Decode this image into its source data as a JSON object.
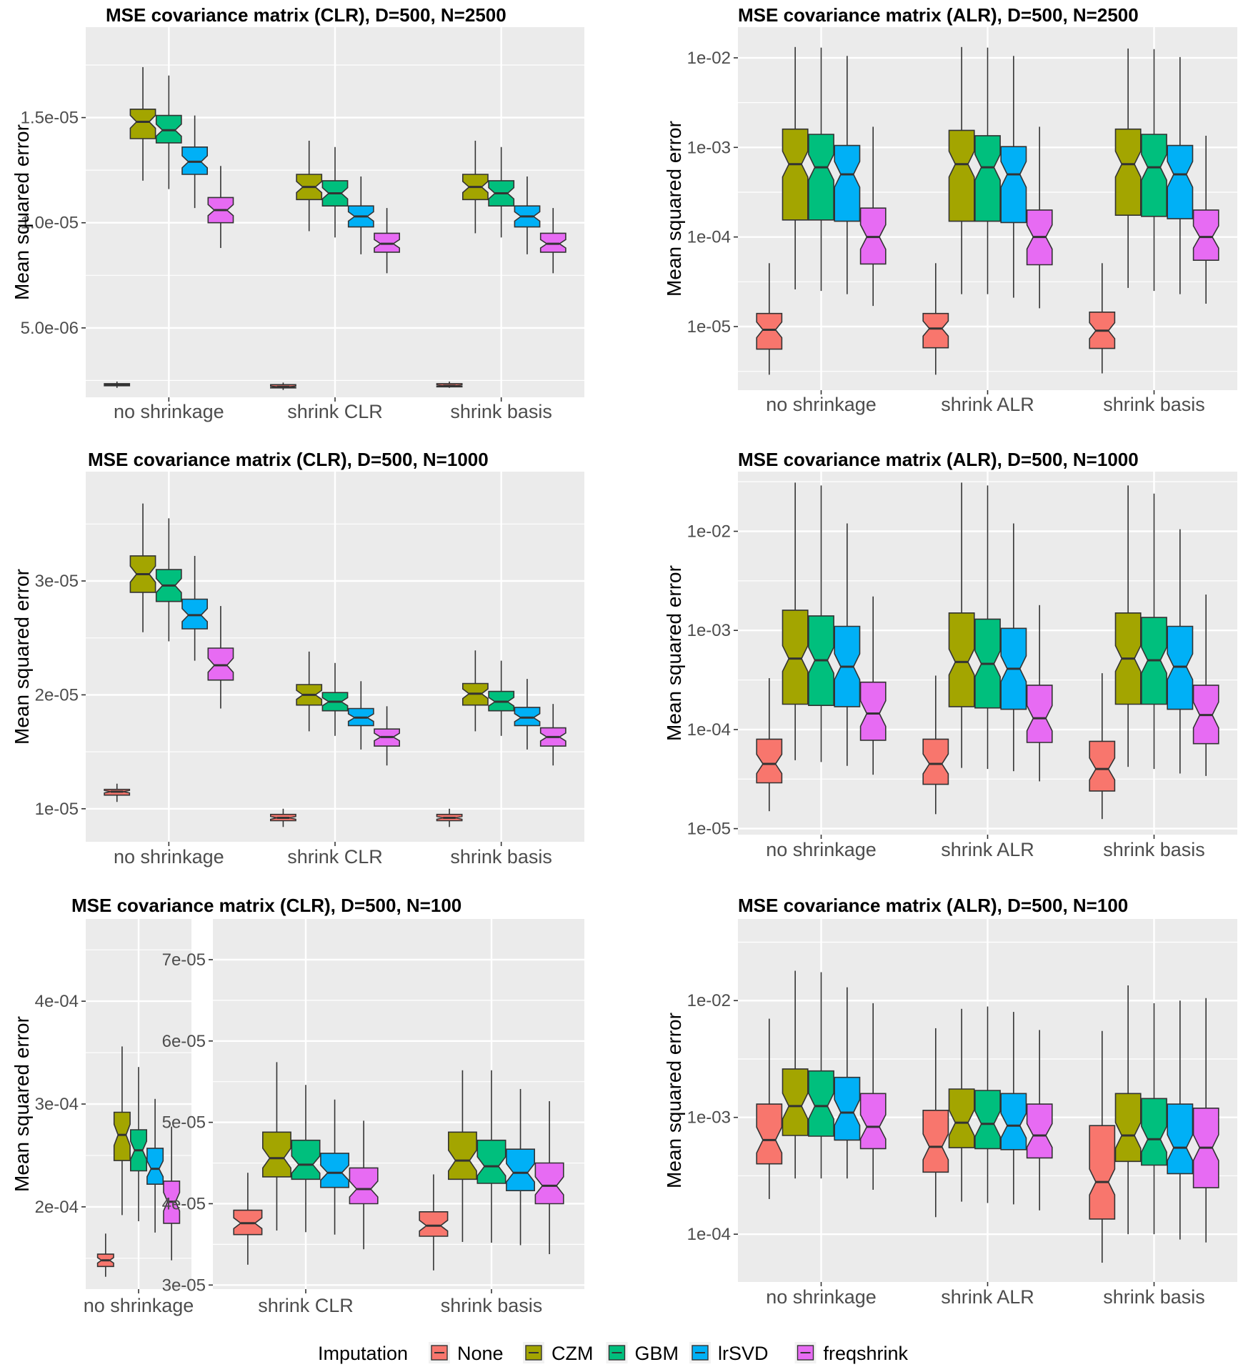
{
  "legend": {
    "title": "Imputation",
    "items": [
      {
        "name": "None",
        "color": "#F8766D"
      },
      {
        "name": "CZM",
        "color": "#A3A500"
      },
      {
        "name": "GBM",
        "color": "#00BF7D"
      },
      {
        "name": "lrSVD",
        "color": "#00B0F6"
      },
      {
        "name": "freqshrink",
        "color": "#E76BF3"
      }
    ]
  },
  "chart_data": [
    {
      "id": "clr2500",
      "type": "boxplot",
      "title": "MSE covariance matrix (CLR), D=500, N=2500",
      "ylabel": "Mean squared error",
      "scale": "linear",
      "ylim": [
        1.7e-06,
        1.93e-05
      ],
      "ticks": [
        {
          "v": 5e-06,
          "label": "5.0e-06"
        },
        {
          "v": 1e-05,
          "label": "1.0e-05"
        },
        {
          "v": 1.5e-05,
          "label": "1.5e-05"
        }
      ],
      "categories": [
        "no shrinkage",
        "shrink CLR",
        "shrink basis"
      ],
      "series_order": [
        "None",
        "CZM",
        "GBM",
        "lrSVD",
        "freqshrink"
      ],
      "boxes": [
        [
          [
            2.15e-06,
            2.25e-06,
            2.3e-06,
            2.35e-06,
            2.45e-06
          ],
          [
            1.2e-05,
            1.4e-05,
            1.48e-05,
            1.54e-05,
            1.74e-05
          ],
          [
            1.16e-05,
            1.38e-05,
            1.44e-05,
            1.51e-05,
            1.7e-05
          ],
          [
            1.07e-05,
            1.23e-05,
            1.29e-05,
            1.36e-05,
            1.51e-05
          ],
          [
            8.8e-06,
            1e-05,
            1.06e-05,
            1.12e-05,
            1.27e-05
          ]
        ],
        [
          [
            2.05e-06,
            2.15e-06,
            2.2e-06,
            2.3e-06,
            2.4e-06
          ],
          [
            9.6e-06,
            1.11e-05,
            1.17e-05,
            1.23e-05,
            1.39e-05
          ],
          [
            9.3e-06,
            1.08e-05,
            1.14e-05,
            1.2e-05,
            1.36e-05
          ],
          [
            8.5e-06,
            9.8e-06,
            1.03e-05,
            1.08e-05,
            1.22e-05
          ],
          [
            7.6e-06,
            8.6e-06,
            9e-06,
            9.5e-06,
            1.07e-05
          ]
        ],
        [
          [
            2.15e-06,
            2.2e-06,
            2.25e-06,
            2.35e-06,
            2.45e-06
          ],
          [
            9.5e-06,
            1.11e-05,
            1.17e-05,
            1.23e-05,
            1.39e-05
          ],
          [
            9.3e-06,
            1.08e-05,
            1.14e-05,
            1.2e-05,
            1.36e-05
          ],
          [
            8.5e-06,
            9.8e-06,
            1.03e-05,
            1.08e-05,
            1.22e-05
          ],
          [
            7.6e-06,
            8.6e-06,
            9e-06,
            9.5e-06,
            1.07e-05
          ]
        ]
      ]
    },
    {
      "id": "alr2500",
      "type": "boxplot",
      "title": "MSE covariance matrix (ALR), D=500, N=2500",
      "ylabel": "Mean squared error",
      "scale": "log",
      "ylim": [
        1.95e-06,
        0.022
      ],
      "ticks": [
        {
          "v": 1e-05,
          "label": "1e-05"
        },
        {
          "v": 0.0001,
          "label": "1e-04"
        },
        {
          "v": 0.001,
          "label": "1e-03"
        },
        {
          "v": 0.01,
          "label": "1e-02"
        }
      ],
      "categories": [
        "no shrinkage",
        "shrink ALR",
        "shrink basis"
      ],
      "series_order": [
        "None",
        "CZM",
        "GBM",
        "lrSVD",
        "freqshrink"
      ],
      "boxes": [
        [
          [
            2.9e-06,
            5.6e-06,
            9.2e-06,
            1.4e-05,
            5.1e-05
          ],
          [
            2.6e-05,
            0.000155,
            0.00065,
            0.0016,
            0.0132
          ],
          [
            2.5e-05,
            0.000155,
            0.0006,
            0.0014,
            0.013
          ],
          [
            2.3e-05,
            0.00015,
            0.0005,
            0.00105,
            0.0105
          ],
          [
            1.7e-05,
            5e-05,
            0.0001,
            0.00021,
            0.0017
          ]
        ],
        [
          [
            2.9e-06,
            5.8e-06,
            9.5e-06,
            1.4e-05,
            5.1e-05
          ],
          [
            2.3e-05,
            0.00015,
            0.00065,
            0.00155,
            0.0132
          ],
          [
            2.3e-05,
            0.00015,
            0.0006,
            0.00135,
            0.013
          ],
          [
            2.1e-05,
            0.000145,
            0.0005,
            0.00102,
            0.0105
          ],
          [
            1.6e-05,
            4.9e-05,
            0.0001,
            0.0002,
            0.0017
          ]
        ],
        [
          [
            3e-06,
            5.7e-06,
            9e-06,
            1.45e-05,
            5.1e-05
          ],
          [
            2.7e-05,
            0.000175,
            0.00065,
            0.0016,
            0.0127
          ],
          [
            2.5e-05,
            0.00017,
            0.0006,
            0.0014,
            0.0125
          ],
          [
            2.3e-05,
            0.00016,
            0.0005,
            0.00105,
            0.0102
          ],
          [
            1.8e-05,
            5.5e-05,
            0.0001,
            0.0002,
            0.00135
          ]
        ]
      ]
    },
    {
      "id": "clr1000",
      "type": "boxplot",
      "title": "MSE covariance matrix (CLR), D=500, N=1000",
      "ylabel": "Mean squared error",
      "scale": "linear",
      "ylim": [
        7.1e-06,
        3.96e-05
      ],
      "ticks": [
        {
          "v": 1e-05,
          "label": "1e-05"
        },
        {
          "v": 2e-05,
          "label": "2e-05"
        },
        {
          "v": 3e-05,
          "label": "3e-05"
        }
      ],
      "categories": [
        "no shrinkage",
        "shrink CLR",
        "shrink basis"
      ],
      "series_order": [
        "None",
        "CZM",
        "GBM",
        "lrSVD",
        "freqshrink"
      ],
      "boxes": [
        [
          [
            1.06e-05,
            1.12e-05,
            1.15e-05,
            1.17e-05,
            1.22e-05
          ],
          [
            2.55e-05,
            2.9e-05,
            3.06e-05,
            3.22e-05,
            3.68e-05
          ],
          [
            2.47e-05,
            2.82e-05,
            2.96e-05,
            3.1e-05,
            3.55e-05
          ],
          [
            2.3e-05,
            2.58e-05,
            2.7e-05,
            2.84e-05,
            3.22e-05
          ],
          [
            1.88e-05,
            2.13e-05,
            2.26e-05,
            2.41e-05,
            2.78e-05
          ]
        ],
        [
          [
            8.4e-06,
            8.95e-06,
            9.2e-06,
            9.5e-06,
            1e-05
          ],
          [
            1.68e-05,
            1.91e-05,
            2e-05,
            2.09e-05,
            2.38e-05
          ],
          [
            1.64e-05,
            1.86e-05,
            1.94e-05,
            2.02e-05,
            2.28e-05
          ],
          [
            1.52e-05,
            1.73e-05,
            1.8e-05,
            1.88e-05,
            2.12e-05
          ],
          [
            1.38e-05,
            1.55e-05,
            1.63e-05,
            1.7e-05,
            1.9e-05
          ]
        ],
        [
          [
            8.4e-06,
            8.95e-06,
            9.2e-06,
            9.5e-06,
            1e-05
          ],
          [
            1.68e-05,
            1.91e-05,
            2.01e-05,
            2.1e-05,
            2.39e-05
          ],
          [
            1.64e-05,
            1.86e-05,
            1.94e-05,
            2.03e-05,
            2.3e-05
          ],
          [
            1.52e-05,
            1.73e-05,
            1.8e-05,
            1.89e-05,
            2.14e-05
          ],
          [
            1.38e-05,
            1.55e-05,
            1.63e-05,
            1.71e-05,
            1.92e-05
          ]
        ]
      ]
    },
    {
      "id": "alr1000",
      "type": "boxplot",
      "title": "MSE covariance matrix (ALR), D=500, N=1000",
      "ylabel": "Mean squared error",
      "scale": "log",
      "ylim": [
        8.7e-06,
        0.04
      ],
      "ticks": [
        {
          "v": 1e-05,
          "label": "1e-05"
        },
        {
          "v": 0.0001,
          "label": "1e-04"
        },
        {
          "v": 0.001,
          "label": "1e-03"
        },
        {
          "v": 0.01,
          "label": "1e-02"
        }
      ],
      "categories": [
        "no shrinkage",
        "shrink ALR",
        "shrink basis"
      ],
      "series_order": [
        "None",
        "CZM",
        "GBM",
        "lrSVD",
        "freqshrink"
      ],
      "boxes": [
        [
          [
            1.5e-05,
            2.9e-05,
            4.5e-05,
            8e-05,
            0.00033
          ],
          [
            4.9e-05,
            0.00018,
            0.00052,
            0.0016,
            0.031
          ],
          [
            4.7e-05,
            0.000175,
            0.0005,
            0.0014,
            0.029
          ],
          [
            4.3e-05,
            0.00017,
            0.00043,
            0.0011,
            0.012
          ],
          [
            3.5e-05,
            7.8e-05,
            0.000145,
            0.0003,
            0.0022
          ]
        ],
        [
          [
            1.4e-05,
            2.8e-05,
            4.5e-05,
            8e-05,
            0.00035
          ],
          [
            4.1e-05,
            0.00017,
            0.00048,
            0.0015,
            0.031
          ],
          [
            4e-05,
            0.000165,
            0.00046,
            0.0013,
            0.029
          ],
          [
            3.8e-05,
            0.00016,
            0.00041,
            0.00105,
            0.012
          ],
          [
            3e-05,
            7.4e-05,
            0.00013,
            0.00028,
            0.0018
          ]
        ],
        [
          [
            1.25e-05,
            2.4e-05,
            4e-05,
            7.6e-05,
            0.00037
          ],
          [
            4.2e-05,
            0.00018,
            0.00052,
            0.0015,
            0.029
          ],
          [
            4e-05,
            0.00018,
            0.0005,
            0.00135,
            0.024
          ],
          [
            3.6e-05,
            0.00016,
            0.00043,
            0.0011,
            0.0105
          ],
          [
            3.4e-05,
            7.2e-05,
            0.00014,
            0.00028,
            0.0023
          ]
        ]
      ]
    },
    {
      "id": "clr100a",
      "type": "boxplot",
      "title": "MSE covariance matrix (CLR), D=500, N=100",
      "ylabel": "Mean squared error",
      "scale": "linear",
      "ylim": [
        0.00012,
        0.00048
      ],
      "ticks": [
        {
          "v": 0.0002,
          "label": "2e-04"
        },
        {
          "v": 0.0003,
          "label": "3e-04"
        },
        {
          "v": 0.0004,
          "label": "4e-04"
        }
      ],
      "categories": [
        "no shrinkage"
      ],
      "series_order": [
        "None",
        "CZM",
        "GBM",
        "lrSVD",
        "freqshrink"
      ],
      "boxes": [
        [
          [
            0.000132,
            0.000142,
            0.000148,
            0.000154,
            0.000174
          ],
          [
            0.000192,
            0.000245,
            0.00027,
            0.000292,
            0.000356
          ],
          [
            0.000186,
            0.000235,
            0.000255,
            0.000275,
            0.000336
          ],
          [
            0.000175,
            0.000222,
            0.000237,
            0.000257,
            0.000305
          ],
          [
            0.000148,
            0.000184,
            0.000205,
            0.000225,
            0.000278
          ]
        ]
      ]
    },
    {
      "id": "clr100b",
      "type": "boxplot",
      "title": "",
      "ylabel": "",
      "scale": "linear",
      "ylim": [
        2.95e-05,
        7.5e-05
      ],
      "ticks": [
        {
          "v": 3e-05,
          "label": "3e-05"
        },
        {
          "v": 4e-05,
          "label": "4e-05"
        },
        {
          "v": 5e-05,
          "label": "5e-05"
        },
        {
          "v": 6e-05,
          "label": "6e-05"
        },
        {
          "v": 7e-05,
          "label": "7e-05"
        }
      ],
      "categories": [
        "shrink CLR",
        "shrink basis"
      ],
      "series_order": [
        "None",
        "CZM",
        "GBM",
        "lrSVD",
        "freqshrink"
      ],
      "boxes": [
        [
          [
            3.25e-05,
            3.62e-05,
            3.76e-05,
            3.92e-05,
            4.38e-05
          ],
          [
            3.67e-05,
            4.33e-05,
            4.56e-05,
            4.88e-05,
            5.74e-05
          ],
          [
            3.65e-05,
            4.3e-05,
            4.48e-05,
            4.78e-05,
            5.46e-05
          ],
          [
            3.62e-05,
            4.2e-05,
            4.38e-05,
            4.62e-05,
            5.28e-05
          ],
          [
            3.44e-05,
            4e-05,
            4.18e-05,
            4.44e-05,
            5.02e-05
          ]
        ],
        [
          [
            3.18e-05,
            3.6e-05,
            3.73e-05,
            3.9e-05,
            4.36e-05
          ],
          [
            3.53e-05,
            4.3e-05,
            4.53e-05,
            4.88e-05,
            5.64e-05
          ],
          [
            3.52e-05,
            4.25e-05,
            4.46e-05,
            4.78e-05,
            5.64e-05
          ],
          [
            3.49e-05,
            4.16e-05,
            4.38e-05,
            4.67e-05,
            5.41e-05
          ],
          [
            3.38e-05,
            4e-05,
            4.22e-05,
            4.5e-05,
            5.26e-05
          ]
        ]
      ]
    },
    {
      "id": "alr100",
      "type": "boxplot",
      "title": "MSE covariance matrix (ALR), D=500, N=100",
      "ylabel": "Mean squared error",
      "scale": "log",
      "ylim": [
        3.9e-05,
        0.05
      ],
      "ticks": [
        {
          "v": 0.0001,
          "label": "1e-04"
        },
        {
          "v": 0.001,
          "label": "1e-03"
        },
        {
          "v": 0.01,
          "label": "1e-02"
        }
      ],
      "categories": [
        "no shrinkage",
        "shrink ALR",
        "shrink basis"
      ],
      "series_order": [
        "None",
        "CZM",
        "GBM",
        "lrSVD",
        "freqshrink"
      ],
      "boxes": [
        [
          [
            0.0002,
            0.0004,
            0.00064,
            0.0013,
            0.007
          ],
          [
            0.0003,
            0.0007,
            0.00125,
            0.0026,
            0.018
          ],
          [
            0.0003,
            0.00069,
            0.00125,
            0.0025,
            0.0175
          ],
          [
            0.0003,
            0.00064,
            0.0011,
            0.0022,
            0.013
          ],
          [
            0.00024,
            0.00054,
            0.00083,
            0.0016,
            0.0095
          ]
        ],
        [
          [
            0.00014,
            0.00034,
            0.00056,
            0.00115,
            0.0058
          ],
          [
            0.00019,
            0.00055,
            0.0009,
            0.00175,
            0.0085
          ],
          [
            0.000185,
            0.00054,
            0.00088,
            0.0017,
            0.0089
          ],
          [
            0.00018,
            0.00053,
            0.00085,
            0.0016,
            0.008
          ],
          [
            0.00016,
            0.00045,
            0.0007,
            0.0013,
            0.0056
          ]
        ],
        [
          [
            5.7e-05,
            0.000135,
            0.00028,
            0.00085,
            0.0055
          ],
          [
            0.0001,
            0.00042,
            0.0007,
            0.0016,
            0.0135
          ],
          [
            0.0001,
            0.00039,
            0.00065,
            0.00145,
            0.0095
          ],
          [
            9e-05,
            0.00033,
            0.00055,
            0.0013,
            0.01
          ],
          [
            8.5e-05,
            0.00025,
            0.00055,
            0.0012,
            0.0105
          ]
        ]
      ]
    }
  ]
}
